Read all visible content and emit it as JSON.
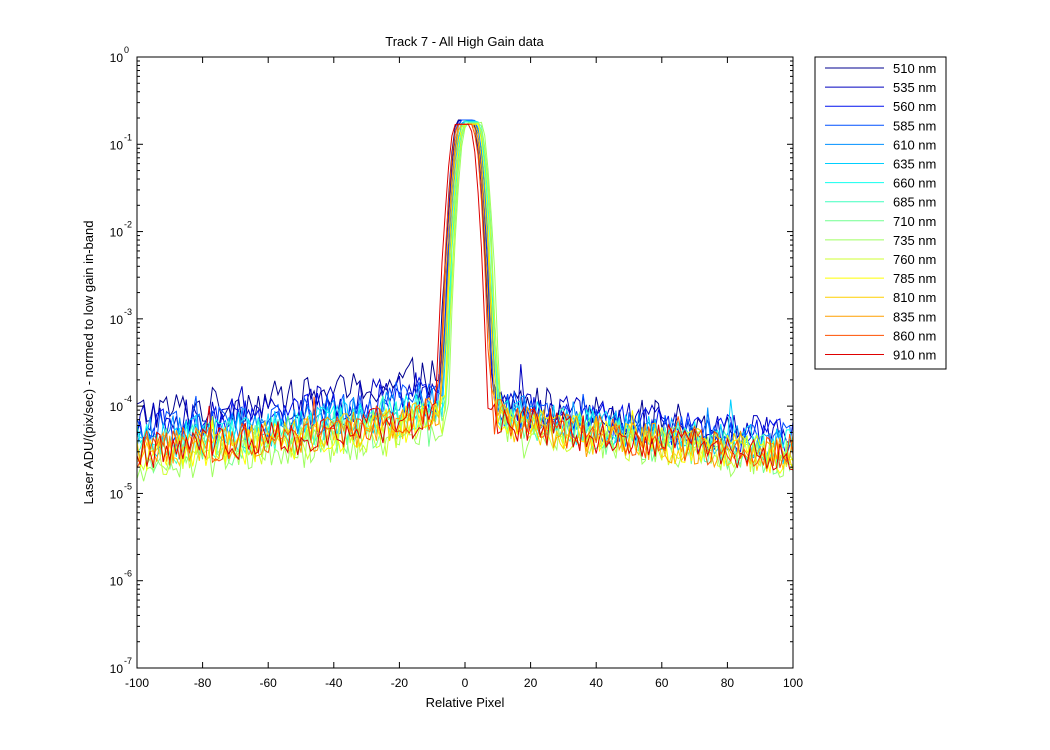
{
  "chart_data": {
    "type": "line",
    "title": "Track 7 - All High Gain data",
    "xlabel": "Relative Pixel",
    "ylabel": "Laser ADU/(pix/sec) - normed to low gain in-band",
    "xlim": [
      -100,
      100
    ],
    "ylim": [
      1e-07,
      1
    ],
    "yscale": "log",
    "grid": false,
    "legend_position": "outside-top-right",
    "x_ticks": [
      "-100",
      "-80",
      "-60",
      "-40",
      "-20",
      "0",
      "20",
      "40",
      "60",
      "80",
      "100"
    ],
    "y_tick_exponents": [
      "0",
      "-1",
      "-2",
      "-3",
      "-4",
      "-5",
      "-6",
      "-7"
    ],
    "y_tick_base": "10",
    "series": [
      {
        "name": "510 nm",
        "color": "#00008f",
        "peak": 0.19,
        "center": 0.0,
        "wing_left": 8.5e-05,
        "wing_right": 5e-05,
        "x_max": 84
      },
      {
        "name": "535 nm",
        "color": "#0000bf",
        "peak": 0.19,
        "center": 0.3,
        "wing_left": 6.5e-05,
        "wing_right": 4.5e-05,
        "x_max": 100
      },
      {
        "name": "560 nm",
        "color": "#0010ef",
        "peak": 0.19,
        "center": 0.6,
        "wing_left": 5.5e-05,
        "wing_right": 4.2e-05,
        "x_max": 100
      },
      {
        "name": "585 nm",
        "color": "#0050ff",
        "peak": 0.19,
        "center": 0.9,
        "wing_left": 5e-05,
        "wing_right": 3.8e-05,
        "x_max": 100
      },
      {
        "name": "610 nm",
        "color": "#0090ff",
        "peak": 0.185,
        "center": 1.2,
        "wing_left": 4.5e-05,
        "wing_right": 3.6e-05,
        "x_max": 100
      },
      {
        "name": "635 nm",
        "color": "#00cfff",
        "peak": 0.185,
        "center": 1.5,
        "wing_left": 4.2e-05,
        "wing_right": 3.4e-05,
        "x_max": 100
      },
      {
        "name": "660 nm",
        "color": "#10ffef",
        "peak": 0.18,
        "center": 1.8,
        "wing_left": 3.8e-05,
        "wing_right": 3.2e-05,
        "x_max": 100
      },
      {
        "name": "685 nm",
        "color": "#40ffbf",
        "peak": 0.18,
        "center": 2.1,
        "wing_left": 3.4e-05,
        "wing_right": 3e-05,
        "x_max": 100
      },
      {
        "name": "710 nm",
        "color": "#70ff8f",
        "peak": 0.175,
        "center": 2.4,
        "wing_left": 2.8e-05,
        "wing_right": 2.6e-05,
        "x_max": 100
      },
      {
        "name": "735 nm",
        "color": "#9fff60",
        "peak": 0.175,
        "center": 2.7,
        "wing_left": 2.2e-05,
        "wing_right": 2.4e-05,
        "x_max": 100
      },
      {
        "name": "760 nm",
        "color": "#cfff30",
        "peak": 0.17,
        "center": 2.2,
        "wing_left": 2.6e-05,
        "wing_right": 2.5e-05,
        "x_max": 100
      },
      {
        "name": "785 nm",
        "color": "#ffff00",
        "peak": 0.17,
        "center": 1.6,
        "wing_left": 2.8e-05,
        "wing_right": 2.6e-05,
        "x_max": 100
      },
      {
        "name": "810 nm",
        "color": "#ffcf00",
        "peak": 0.17,
        "center": 1.0,
        "wing_left": 3e-05,
        "wing_right": 2.7e-05,
        "x_max": 100
      },
      {
        "name": "835 nm",
        "color": "#ff9f00",
        "peak": 0.17,
        "center": 0.5,
        "wing_left": 3.1e-05,
        "wing_right": 2.8e-05,
        "x_max": 100
      },
      {
        "name": "860 nm",
        "color": "#ff5000",
        "peak": 0.17,
        "center": 0.0,
        "wing_left": 3.2e-05,
        "wing_right": 2.9e-05,
        "x_max": 100
      },
      {
        "name": "910 nm",
        "color": "#df0000",
        "peak": 0.17,
        "center": -0.8,
        "wing_left": 3e-05,
        "wing_right": 2.8e-05,
        "x_max": 100
      }
    ]
  }
}
